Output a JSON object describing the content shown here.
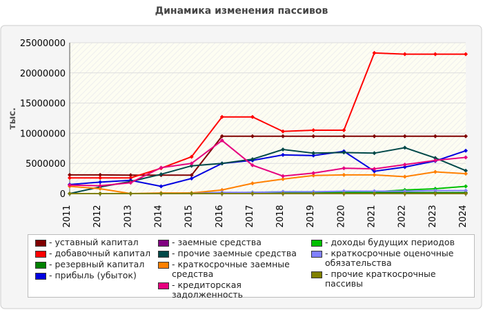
{
  "chart_data": {
    "type": "line",
    "title": "Динамика изменения пассивов",
    "y_label": "тыс.",
    "categories": [
      "2011",
      "2012",
      "2013",
      "2014",
      "2015",
      "2016",
      "2017",
      "2018",
      "2019",
      "2020",
      "2021",
      "2022",
      "2023",
      "2024"
    ],
    "ylim": [
      0,
      25000000
    ],
    "yticks": [
      0,
      5000000,
      10000000,
      15000000,
      20000000,
      25000000
    ],
    "series": [
      {
        "name": "уставный капитал",
        "color": "#800000",
        "values": [
          3100000,
          3100000,
          3050000,
          3050000,
          3050000,
          9500000,
          9500000,
          9500000,
          9500000,
          9500000,
          9500000,
          9500000,
          9500000,
          9500000
        ]
      },
      {
        "name": "добавочный капитал",
        "color": "#ff0000",
        "values": [
          2600000,
          2600000,
          2600000,
          4200000,
          6100000,
          12700000,
          12700000,
          10300000,
          10500000,
          10500000,
          23300000,
          23100000,
          23100000,
          23100000
        ]
      },
      {
        "name": "резервный капитал",
        "color": "#008000",
        "values": [
          0,
          0,
          0,
          0,
          100000,
          150000,
          150000,
          150000,
          150000,
          150000,
          150000,
          150000,
          150000,
          150000
        ]
      },
      {
        "name": "прибыль (убыток)",
        "color": "#0000e0",
        "values": [
          1500000,
          1900000,
          2200000,
          1200000,
          2500000,
          5000000,
          5500000,
          6400000,
          6300000,
          7000000,
          3700000,
          4400000,
          5400000,
          7100000
        ]
      },
      {
        "name": "заемные средства",
        "color": "#800080",
        "values": [
          0,
          0,
          0,
          0,
          0,
          0,
          0,
          0,
          0,
          0,
          0,
          0,
          0,
          0
        ]
      },
      {
        "name": "прочие заемные средства",
        "color": "#004848",
        "values": [
          0,
          1100000,
          2000000,
          3200000,
          4600000,
          5000000,
          5700000,
          7300000,
          6700000,
          6800000,
          6700000,
          7600000,
          5900000,
          3800000
        ]
      },
      {
        "name": "краткосрочные заемные средства",
        "color": "#ff8000",
        "values": [
          1200000,
          800000,
          0,
          100000,
          100000,
          600000,
          1700000,
          2400000,
          3000000,
          3100000,
          3100000,
          2800000,
          3600000,
          3300000
        ]
      },
      {
        "name": "кредиторская задолженность",
        "color": "#e6007e",
        "values": [
          1400000,
          1300000,
          1800000,
          4300000,
          5000000,
          8800000,
          4700000,
          2900000,
          3400000,
          4200000,
          4100000,
          4800000,
          5500000,
          6000000
        ]
      },
      {
        "name": "доходы будущих периодов",
        "color": "#00c000",
        "values": [
          0,
          0,
          0,
          0,
          0,
          100000,
          200000,
          300000,
          300000,
          300000,
          300000,
          600000,
          800000,
          1200000
        ]
      },
      {
        "name": "краткосрочные оценочные обязательства",
        "color": "#8080ff",
        "values": [
          0,
          0,
          0,
          0,
          0,
          200000,
          200000,
          300000,
          300000,
          400000,
          400000,
          400000,
          500000,
          500000
        ]
      },
      {
        "name": "прочие краткосрочные пассивы",
        "color": "#808000",
        "values": [
          0,
          0,
          0,
          0,
          0,
          0,
          0,
          0,
          0,
          0,
          0,
          0,
          0,
          0
        ]
      }
    ]
  }
}
